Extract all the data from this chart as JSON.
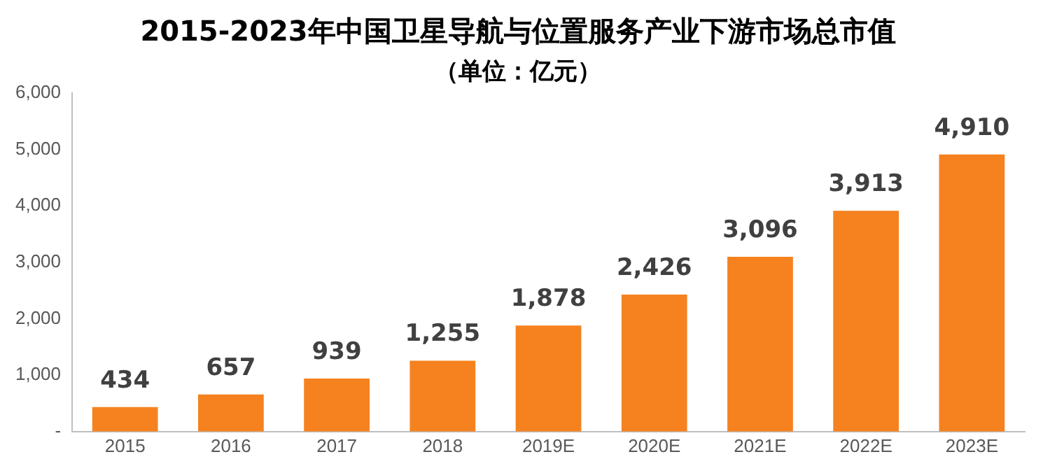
{
  "chart_data": {
    "type": "bar",
    "title": "2015-2023年中国卫星导航与位置服务产业下游市场总市值",
    "subtitle": "（单位：亿元）",
    "categories": [
      "2015",
      "2016",
      "2017",
      "2018",
      "2019E",
      "2020E",
      "2021E",
      "2022E",
      "2023E"
    ],
    "values": [
      434,
      657,
      939,
      1255,
      1878,
      2426,
      3096,
      3913,
      4910
    ],
    "value_labels": [
      "434",
      "657",
      "939",
      "1,255",
      "1,878",
      "2,426",
      "3,096",
      "3,913",
      "4,910"
    ],
    "color": "#f5821f",
    "ylim": [
      0,
      6000
    ],
    "yticks": [
      {
        "value": 0,
        "label": "-"
      },
      {
        "value": 1000,
        "label": "1,000"
      },
      {
        "value": 2000,
        "label": "2,000"
      },
      {
        "value": 3000,
        "label": "3,000"
      },
      {
        "value": 4000,
        "label": "4,000"
      },
      {
        "value": 5000,
        "label": "5,000"
      },
      {
        "value": 6000,
        "label": "6,000"
      }
    ],
    "grid": false,
    "legend": false
  }
}
